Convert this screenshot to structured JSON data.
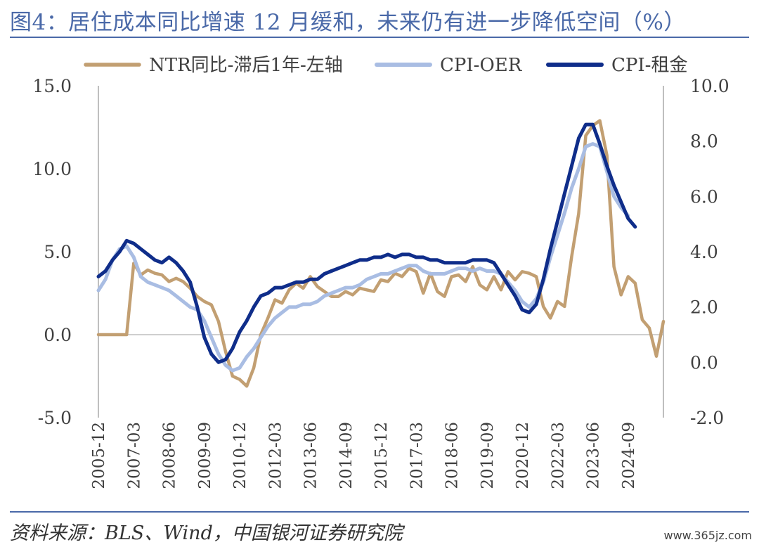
{
  "header": {
    "title": "图4：居住成本同比增速 12 月缓和，未来仍有进一步降低空间（%）"
  },
  "footer": {
    "source": "资料来源：BLS、Wind，中国银河证券研究院",
    "watermark": "www.365jz.com"
  },
  "colors": {
    "ntr": "#c29f72",
    "oer": "#a9bde3",
    "rent": "#0f2d8a",
    "rule": "#4a69a8",
    "axis": "#bfbfbf"
  },
  "chart_data": {
    "type": "line",
    "title": "",
    "legend_position": "top",
    "x_start": "2005-12",
    "x_end": "2025-09",
    "x_ticks": [
      "2005-12",
      "2007-03",
      "2008-06",
      "2009-09",
      "2010-12",
      "2012-03",
      "2013-06",
      "2014-09",
      "2015-12",
      "2017-03",
      "2018-06",
      "2019-09",
      "2020-12",
      "2022-03",
      "2023-06",
      "2024-09"
    ],
    "y_left": {
      "min": -5,
      "max": 15,
      "ticks": [
        "-5.0",
        "0.0",
        "5.0",
        "10.0",
        "15.0"
      ]
    },
    "y_right": {
      "min": -2,
      "max": 10,
      "ticks": [
        "-2.0",
        "0.0",
        "2.0",
        "4.0",
        "6.0",
        "8.0",
        "10.0"
      ]
    },
    "series": [
      {
        "name": "NTR同比-滞后1年-左轴",
        "axis": "left",
        "points": [
          [
            "2005-12",
            0.0
          ],
          [
            "2006-03",
            0.0
          ],
          [
            "2006-06",
            0.0
          ],
          [
            "2006-09",
            0.0
          ],
          [
            "2006-12",
            0.0
          ],
          [
            "2007-03",
            4.3
          ],
          [
            "2007-06",
            3.6
          ],
          [
            "2007-09",
            3.9
          ],
          [
            "2007-12",
            3.7
          ],
          [
            "2008-03",
            3.6
          ],
          [
            "2008-06",
            3.2
          ],
          [
            "2008-09",
            3.4
          ],
          [
            "2008-12",
            3.2
          ],
          [
            "2009-03",
            2.8
          ],
          [
            "2009-06",
            2.3
          ],
          [
            "2009-09",
            2.0
          ],
          [
            "2009-12",
            1.8
          ],
          [
            "2010-03",
            0.8
          ],
          [
            "2010-06",
            -1.0
          ],
          [
            "2010-09",
            -2.5
          ],
          [
            "2010-12",
            -2.7
          ],
          [
            "2011-03",
            -3.1
          ],
          [
            "2011-06",
            -2.0
          ],
          [
            "2011-09",
            0.0
          ],
          [
            "2011-12",
            1.0
          ],
          [
            "2012-03",
            2.1
          ],
          [
            "2012-06",
            1.9
          ],
          [
            "2012-09",
            2.7
          ],
          [
            "2012-12",
            3.1
          ],
          [
            "2013-03",
            2.8
          ],
          [
            "2013-06",
            3.5
          ],
          [
            "2013-09",
            2.9
          ],
          [
            "2013-12",
            2.6
          ],
          [
            "2014-03",
            2.3
          ],
          [
            "2014-06",
            2.3
          ],
          [
            "2014-09",
            2.6
          ],
          [
            "2014-12",
            2.4
          ],
          [
            "2015-03",
            2.8
          ],
          [
            "2015-06",
            2.7
          ],
          [
            "2015-09",
            2.6
          ],
          [
            "2015-12",
            3.3
          ],
          [
            "2016-03",
            3.2
          ],
          [
            "2016-06",
            3.7
          ],
          [
            "2016-09",
            3.5
          ],
          [
            "2016-12",
            4.0
          ],
          [
            "2017-03",
            3.8
          ],
          [
            "2017-06",
            2.5
          ],
          [
            "2017-09",
            3.7
          ],
          [
            "2017-12",
            2.6
          ],
          [
            "2018-03",
            2.3
          ],
          [
            "2018-06",
            3.5
          ],
          [
            "2018-09",
            3.6
          ],
          [
            "2018-12",
            3.2
          ],
          [
            "2019-03",
            4.1
          ],
          [
            "2019-06",
            3.0
          ],
          [
            "2019-09",
            2.7
          ],
          [
            "2019-12",
            3.5
          ],
          [
            "2020-03",
            2.7
          ],
          [
            "2020-06",
            3.8
          ],
          [
            "2020-09",
            3.3
          ],
          [
            "2020-12",
            3.8
          ],
          [
            "2021-03",
            3.7
          ],
          [
            "2021-06",
            3.5
          ],
          [
            "2021-09",
            1.7
          ],
          [
            "2021-12",
            1.0
          ],
          [
            "2022-03",
            2.0
          ],
          [
            "2022-06",
            1.7
          ],
          [
            "2022-09",
            4.7
          ],
          [
            "2022-12",
            7.3
          ],
          [
            "2023-03",
            12.0
          ],
          [
            "2023-06",
            12.6
          ],
          [
            "2023-09",
            12.9
          ],
          [
            "2023-12",
            10.8
          ],
          [
            "2024-03",
            4.1
          ],
          [
            "2024-06",
            2.4
          ],
          [
            "2024-09",
            3.5
          ],
          [
            "2024-12",
            3.1
          ],
          [
            "2025-03",
            0.9
          ],
          [
            "2025-06",
            0.4
          ],
          [
            "2025-09",
            -1.3
          ],
          [
            "2025-12",
            0.8
          ]
        ]
      },
      {
        "name": "CPI-OER",
        "axis": "right",
        "points": [
          [
            "2005-12",
            2.6
          ],
          [
            "2006-03",
            3.0
          ],
          [
            "2006-06",
            3.7
          ],
          [
            "2006-09",
            4.1
          ],
          [
            "2006-12",
            4.2
          ],
          [
            "2007-03",
            3.8
          ],
          [
            "2007-06",
            3.1
          ],
          [
            "2007-09",
            2.9
          ],
          [
            "2007-12",
            2.8
          ],
          [
            "2008-03",
            2.7
          ],
          [
            "2008-06",
            2.6
          ],
          [
            "2008-09",
            2.4
          ],
          [
            "2008-12",
            2.2
          ],
          [
            "2009-03",
            2.0
          ],
          [
            "2009-06",
            1.9
          ],
          [
            "2009-09",
            1.5
          ],
          [
            "2009-12",
            0.9
          ],
          [
            "2010-03",
            0.3
          ],
          [
            "2010-06",
            -0.1
          ],
          [
            "2010-09",
            -0.3
          ],
          [
            "2010-12",
            -0.2
          ],
          [
            "2011-03",
            0.2
          ],
          [
            "2011-06",
            0.5
          ],
          [
            "2011-09",
            0.9
          ],
          [
            "2011-12",
            1.3
          ],
          [
            "2012-03",
            1.6
          ],
          [
            "2012-06",
            1.8
          ],
          [
            "2012-09",
            2.0
          ],
          [
            "2012-12",
            2.0
          ],
          [
            "2013-03",
            2.1
          ],
          [
            "2013-06",
            2.1
          ],
          [
            "2013-09",
            2.2
          ],
          [
            "2013-12",
            2.4
          ],
          [
            "2014-03",
            2.5
          ],
          [
            "2014-06",
            2.6
          ],
          [
            "2014-09",
            2.7
          ],
          [
            "2014-12",
            2.7
          ],
          [
            "2015-03",
            2.8
          ],
          [
            "2015-06",
            3.0
          ],
          [
            "2015-09",
            3.1
          ],
          [
            "2015-12",
            3.2
          ],
          [
            "2016-03",
            3.2
          ],
          [
            "2016-06",
            3.3
          ],
          [
            "2016-09",
            3.4
          ],
          [
            "2016-12",
            3.5
          ],
          [
            "2017-03",
            3.5
          ],
          [
            "2017-06",
            3.3
          ],
          [
            "2017-09",
            3.2
          ],
          [
            "2017-12",
            3.2
          ],
          [
            "2018-03",
            3.2
          ],
          [
            "2018-06",
            3.3
          ],
          [
            "2018-09",
            3.4
          ],
          [
            "2018-12",
            3.4
          ],
          [
            "2019-03",
            3.3
          ],
          [
            "2019-06",
            3.4
          ],
          [
            "2019-09",
            3.3
          ],
          [
            "2019-12",
            3.3
          ],
          [
            "2020-03",
            3.2
          ],
          [
            "2020-06",
            2.9
          ],
          [
            "2020-09",
            2.6
          ],
          [
            "2020-12",
            2.2
          ],
          [
            "2021-03",
            2.0
          ],
          [
            "2021-06",
            2.3
          ],
          [
            "2021-09",
            2.9
          ],
          [
            "2021-12",
            3.8
          ],
          [
            "2022-03",
            4.6
          ],
          [
            "2022-06",
            5.4
          ],
          [
            "2022-09",
            6.3
          ],
          [
            "2022-12",
            7.0
          ],
          [
            "2023-03",
            7.8
          ],
          [
            "2023-06",
            7.9
          ],
          [
            "2023-09",
            7.8
          ],
          [
            "2023-12",
            6.9
          ],
          [
            "2024-03",
            6.0
          ],
          [
            "2024-06",
            5.6
          ],
          [
            "2024-09",
            5.3
          ]
        ]
      },
      {
        "name": "CPI-租金",
        "axis": "right",
        "points": [
          [
            "2005-12",
            3.1
          ],
          [
            "2006-03",
            3.3
          ],
          [
            "2006-06",
            3.7
          ],
          [
            "2006-09",
            4.0
          ],
          [
            "2006-12",
            4.4
          ],
          [
            "2007-03",
            4.3
          ],
          [
            "2007-06",
            4.1
          ],
          [
            "2007-09",
            3.9
          ],
          [
            "2007-12",
            3.7
          ],
          [
            "2008-03",
            3.6
          ],
          [
            "2008-06",
            3.8
          ],
          [
            "2008-09",
            3.6
          ],
          [
            "2008-12",
            3.3
          ],
          [
            "2009-03",
            2.9
          ],
          [
            "2009-06",
            2.0
          ],
          [
            "2009-09",
            0.9
          ],
          [
            "2009-12",
            0.3
          ],
          [
            "2010-03",
            0.0
          ],
          [
            "2010-06",
            0.1
          ],
          [
            "2010-09",
            0.5
          ],
          [
            "2010-12",
            1.1
          ],
          [
            "2011-03",
            1.5
          ],
          [
            "2011-06",
            2.0
          ],
          [
            "2011-09",
            2.4
          ],
          [
            "2011-12",
            2.5
          ],
          [
            "2012-03",
            2.7
          ],
          [
            "2012-06",
            2.7
          ],
          [
            "2012-09",
            2.8
          ],
          [
            "2012-12",
            2.9
          ],
          [
            "2013-03",
            2.9
          ],
          [
            "2013-06",
            3.0
          ],
          [
            "2013-09",
            3.0
          ],
          [
            "2013-12",
            3.2
          ],
          [
            "2014-03",
            3.3
          ],
          [
            "2014-06",
            3.4
          ],
          [
            "2014-09",
            3.5
          ],
          [
            "2014-12",
            3.6
          ],
          [
            "2015-03",
            3.7
          ],
          [
            "2015-06",
            3.7
          ],
          [
            "2015-09",
            3.8
          ],
          [
            "2015-12",
            3.8
          ],
          [
            "2016-03",
            3.9
          ],
          [
            "2016-06",
            3.8
          ],
          [
            "2016-09",
            3.9
          ],
          [
            "2016-12",
            3.9
          ],
          [
            "2017-03",
            3.8
          ],
          [
            "2017-06",
            3.8
          ],
          [
            "2017-09",
            3.7
          ],
          [
            "2017-12",
            3.7
          ],
          [
            "2018-03",
            3.6
          ],
          [
            "2018-06",
            3.6
          ],
          [
            "2018-09",
            3.6
          ],
          [
            "2018-12",
            3.6
          ],
          [
            "2019-03",
            3.7
          ],
          [
            "2019-06",
            3.7
          ],
          [
            "2019-09",
            3.7
          ],
          [
            "2019-12",
            3.6
          ],
          [
            "2020-03",
            3.2
          ],
          [
            "2020-06",
            2.8
          ],
          [
            "2020-09",
            2.4
          ],
          [
            "2020-12",
            1.9
          ],
          [
            "2021-03",
            1.8
          ],
          [
            "2021-06",
            2.1
          ],
          [
            "2021-09",
            3.0
          ],
          [
            "2021-12",
            4.1
          ],
          [
            "2022-03",
            5.1
          ],
          [
            "2022-06",
            6.1
          ],
          [
            "2022-09",
            7.1
          ],
          [
            "2022-12",
            8.1
          ],
          [
            "2023-03",
            8.6
          ],
          [
            "2023-06",
            8.6
          ],
          [
            "2023-09",
            7.9
          ],
          [
            "2023-12",
            7.1
          ],
          [
            "2024-03",
            6.4
          ],
          [
            "2024-06",
            5.8
          ],
          [
            "2024-09",
            5.2
          ],
          [
            "2024-12",
            4.9
          ]
        ]
      }
    ]
  }
}
